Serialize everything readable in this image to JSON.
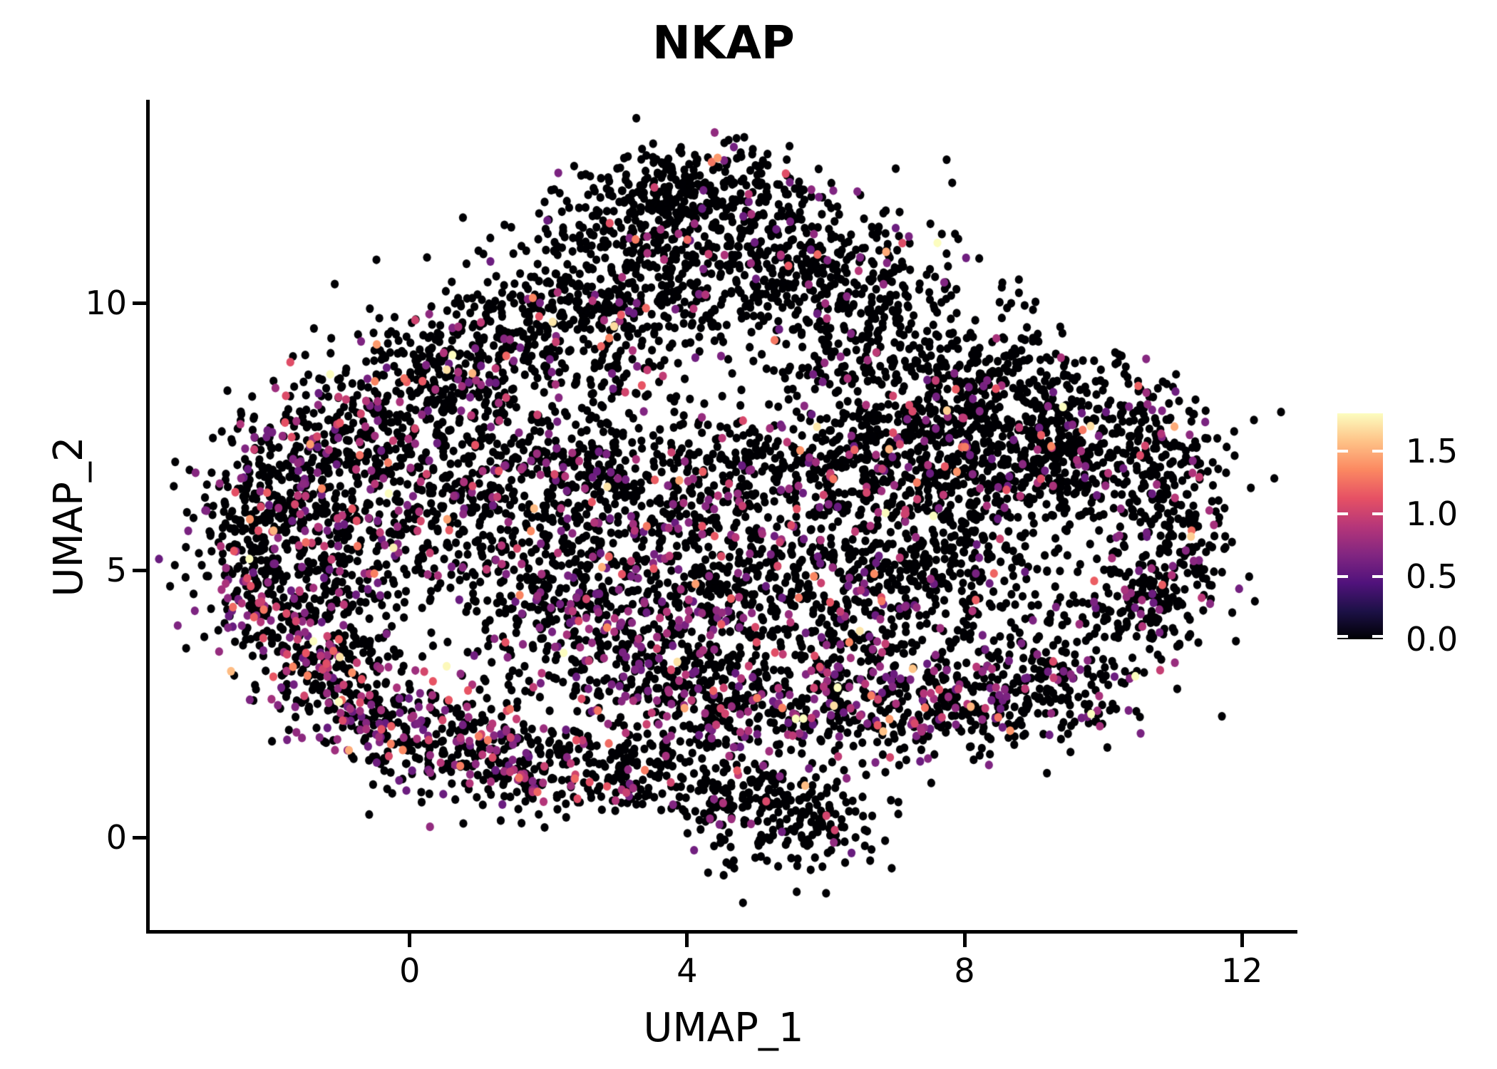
{
  "title": {
    "text": "NKAP"
  },
  "colors": {
    "background": "#ffffff",
    "axis": "#000000",
    "text": "#000000",
    "zero_expression_point": "#000004"
  },
  "chart_data": {
    "type": "scatter",
    "title": "NKAP",
    "xlabel": "UMAP_1",
    "ylabel": "UMAP_2",
    "grid": false,
    "x_range": [
      -3.75,
      12.8
    ],
    "y_range": [
      -1.73,
      13.8
    ],
    "x_ticks": {
      "values": [
        0,
        4,
        8,
        12
      ],
      "labels": [
        "0",
        "4",
        "8",
        "12"
      ]
    },
    "y_ticks": {
      "values": [
        0,
        5,
        10
      ],
      "labels": [
        "0",
        "5",
        "10"
      ]
    },
    "point_radius_px": 5.7,
    "n_points_approx": 8537,
    "colorbar": {
      "position": "right",
      "domain": [
        0,
        1.8
      ],
      "tick_values": [
        0,
        0.5,
        1.0,
        1.5
      ],
      "tick_labels": [
        "0.0",
        "0.5",
        "1.0",
        "1.5"
      ],
      "palette_name": "magma",
      "stops": [
        "#000004",
        "#1D1147",
        "#51127C",
        "#822681",
        "#B63679",
        "#E65164",
        "#FB8861",
        "#FEC287",
        "#FCFDBF"
      ]
    },
    "value_model": {
      "colored_min": 0.55,
      "colored_exp_mean": 0.28,
      "max": 1.8
    },
    "seed": 42,
    "clusters": {
      "fields": [
        "cx",
        "cy",
        "sx",
        "sy",
        "n",
        "frac_expressing"
      ],
      "rows": [
        [
          4.1,
          12.2,
          0.85,
          0.45,
          240,
          0.06
        ],
        [
          4.3,
          11.25,
          1.3,
          0.6,
          330,
          0.07
        ],
        [
          3.0,
          10.2,
          1.0,
          0.65,
          260,
          0.08
        ],
        [
          5.6,
          10.3,
          1.15,
          0.65,
          300,
          0.08
        ],
        [
          6.9,
          9.3,
          0.9,
          0.6,
          190,
          0.08
        ],
        [
          1.7,
          9.5,
          0.8,
          0.55,
          160,
          0.1
        ],
        [
          0.3,
          8.6,
          0.8,
          0.55,
          210,
          0.12
        ],
        [
          -0.9,
          7.4,
          0.75,
          0.6,
          290,
          0.18
        ],
        [
          -1.8,
          6.3,
          0.6,
          0.5,
          170,
          0.2
        ],
        [
          -2.25,
          5.0,
          0.45,
          0.8,
          200,
          0.25
        ],
        [
          -1.3,
          4.35,
          0.7,
          0.55,
          180,
          0.22
        ],
        [
          -0.3,
          5.6,
          0.85,
          0.7,
          140,
          0.15
        ],
        [
          -1.1,
          3.1,
          0.6,
          0.5,
          175,
          0.28
        ],
        [
          -0.2,
          2.2,
          0.7,
          0.5,
          185,
          0.3
        ],
        [
          0.9,
          1.6,
          0.7,
          0.45,
          170,
          0.28
        ],
        [
          1.9,
          1.2,
          0.5,
          0.4,
          130,
          0.2
        ],
        [
          0.8,
          6.8,
          0.9,
          0.8,
          180,
          0.12
        ],
        [
          1.6,
          5.2,
          0.9,
          0.9,
          200,
          0.2
        ],
        [
          2.6,
          4.2,
          0.8,
          0.7,
          190,
          0.25
        ],
        [
          3.6,
          5.6,
          0.95,
          0.9,
          210,
          0.18
        ],
        [
          2.6,
          6.9,
          0.8,
          0.7,
          160,
          0.12
        ],
        [
          4.7,
          4.6,
          0.9,
          0.8,
          210,
          0.18
        ],
        [
          5.6,
          6.9,
          1.1,
          0.5,
          260,
          0.12
        ],
        [
          7.2,
          7.6,
          1.0,
          0.65,
          280,
          0.1
        ],
        [
          8.6,
          8.3,
          1.0,
          0.55,
          260,
          0.1
        ],
        [
          8.9,
          6.8,
          0.9,
          0.7,
          300,
          0.1
        ],
        [
          7.6,
          5.6,
          0.9,
          0.75,
          260,
          0.12
        ],
        [
          6.4,
          4.3,
          0.9,
          0.7,
          220,
          0.15
        ],
        [
          10.3,
          7.4,
          0.7,
          0.6,
          200,
          0.1
        ],
        [
          11.0,
          6.0,
          0.4,
          0.85,
          160,
          0.12
        ],
        [
          10.6,
          4.4,
          0.5,
          0.5,
          130,
          0.12
        ],
        [
          9.3,
          3.0,
          0.8,
          0.55,
          180,
          0.15
        ],
        [
          7.8,
          2.4,
          0.9,
          0.5,
          200,
          0.2
        ],
        [
          6.2,
          2.4,
          0.9,
          0.55,
          220,
          0.25
        ],
        [
          4.6,
          2.6,
          0.8,
          0.6,
          200,
          0.25
        ],
        [
          3.3,
          2.9,
          0.7,
          0.55,
          170,
          0.22
        ],
        [
          3.3,
          1.3,
          0.6,
          0.45,
          140,
          0.12
        ],
        [
          5.5,
          0.3,
          0.65,
          0.5,
          200,
          0.06
        ],
        [
          4.7,
          1.0,
          0.4,
          0.4,
          70,
          0.1
        ],
        [
          9.85,
          2.3,
          0.12,
          0.12,
          10,
          0.3
        ],
        [
          11.55,
          5.05,
          0.15,
          0.3,
          7,
          0.15
        ],
        [
          4.5,
          6.0,
          2.2,
          1.8,
          260,
          0.12
        ],
        [
          2.2,
          8.3,
          1.5,
          1.0,
          180,
          0.08
        ],
        [
          8.2,
          4.4,
          1.5,
          1.0,
          150,
          0.1
        ]
      ]
    }
  }
}
